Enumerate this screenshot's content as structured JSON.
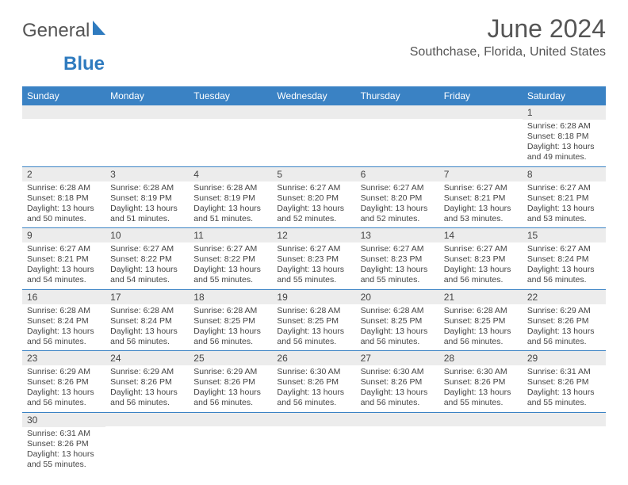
{
  "brand": {
    "name_part1": "General",
    "name_part2": "Blue"
  },
  "title": "June 2024",
  "location": "Southchase, Florida, United States",
  "colors": {
    "header_bg": "#3a82c4",
    "header_text": "#ffffff",
    "daynum_bg": "#ececec",
    "border": "#3a82c4",
    "brand_blue": "#2f7bbf",
    "text": "#444444"
  },
  "weekdays": [
    "Sunday",
    "Monday",
    "Tuesday",
    "Wednesday",
    "Thursday",
    "Friday",
    "Saturday"
  ],
  "layout": {
    "columns": 7,
    "first_weekday_index": 6,
    "days_in_month": 30,
    "font_size_header": 12,
    "font_size_body": 10.5,
    "font_size_title": 32,
    "font_size_location": 16
  },
  "days": {
    "1": {
      "sunrise": "6:28 AM",
      "sunset": "8:18 PM",
      "daylight": "13 hours and 49 minutes."
    },
    "2": {
      "sunrise": "6:28 AM",
      "sunset": "8:18 PM",
      "daylight": "13 hours and 50 minutes."
    },
    "3": {
      "sunrise": "6:28 AM",
      "sunset": "8:19 PM",
      "daylight": "13 hours and 51 minutes."
    },
    "4": {
      "sunrise": "6:28 AM",
      "sunset": "8:19 PM",
      "daylight": "13 hours and 51 minutes."
    },
    "5": {
      "sunrise": "6:27 AM",
      "sunset": "8:20 PM",
      "daylight": "13 hours and 52 minutes."
    },
    "6": {
      "sunrise": "6:27 AM",
      "sunset": "8:20 PM",
      "daylight": "13 hours and 52 minutes."
    },
    "7": {
      "sunrise": "6:27 AM",
      "sunset": "8:21 PM",
      "daylight": "13 hours and 53 minutes."
    },
    "8": {
      "sunrise": "6:27 AM",
      "sunset": "8:21 PM",
      "daylight": "13 hours and 53 minutes."
    },
    "9": {
      "sunrise": "6:27 AM",
      "sunset": "8:21 PM",
      "daylight": "13 hours and 54 minutes."
    },
    "10": {
      "sunrise": "6:27 AM",
      "sunset": "8:22 PM",
      "daylight": "13 hours and 54 minutes."
    },
    "11": {
      "sunrise": "6:27 AM",
      "sunset": "8:22 PM",
      "daylight": "13 hours and 55 minutes."
    },
    "12": {
      "sunrise": "6:27 AM",
      "sunset": "8:23 PM",
      "daylight": "13 hours and 55 minutes."
    },
    "13": {
      "sunrise": "6:27 AM",
      "sunset": "8:23 PM",
      "daylight": "13 hours and 55 minutes."
    },
    "14": {
      "sunrise": "6:27 AM",
      "sunset": "8:23 PM",
      "daylight": "13 hours and 56 minutes."
    },
    "15": {
      "sunrise": "6:27 AM",
      "sunset": "8:24 PM",
      "daylight": "13 hours and 56 minutes."
    },
    "16": {
      "sunrise": "6:28 AM",
      "sunset": "8:24 PM",
      "daylight": "13 hours and 56 minutes."
    },
    "17": {
      "sunrise": "6:28 AM",
      "sunset": "8:24 PM",
      "daylight": "13 hours and 56 minutes."
    },
    "18": {
      "sunrise": "6:28 AM",
      "sunset": "8:25 PM",
      "daylight": "13 hours and 56 minutes."
    },
    "19": {
      "sunrise": "6:28 AM",
      "sunset": "8:25 PM",
      "daylight": "13 hours and 56 minutes."
    },
    "20": {
      "sunrise": "6:28 AM",
      "sunset": "8:25 PM",
      "daylight": "13 hours and 56 minutes."
    },
    "21": {
      "sunrise": "6:28 AM",
      "sunset": "8:25 PM",
      "daylight": "13 hours and 56 minutes."
    },
    "22": {
      "sunrise": "6:29 AM",
      "sunset": "8:26 PM",
      "daylight": "13 hours and 56 minutes."
    },
    "23": {
      "sunrise": "6:29 AM",
      "sunset": "8:26 PM",
      "daylight": "13 hours and 56 minutes."
    },
    "24": {
      "sunrise": "6:29 AM",
      "sunset": "8:26 PM",
      "daylight": "13 hours and 56 minutes."
    },
    "25": {
      "sunrise": "6:29 AM",
      "sunset": "8:26 PM",
      "daylight": "13 hours and 56 minutes."
    },
    "26": {
      "sunrise": "6:30 AM",
      "sunset": "8:26 PM",
      "daylight": "13 hours and 56 minutes."
    },
    "27": {
      "sunrise": "6:30 AM",
      "sunset": "8:26 PM",
      "daylight": "13 hours and 56 minutes."
    },
    "28": {
      "sunrise": "6:30 AM",
      "sunset": "8:26 PM",
      "daylight": "13 hours and 55 minutes."
    },
    "29": {
      "sunrise": "6:31 AM",
      "sunset": "8:26 PM",
      "daylight": "13 hours and 55 minutes."
    },
    "30": {
      "sunrise": "6:31 AM",
      "sunset": "8:26 PM",
      "daylight": "13 hours and 55 minutes."
    }
  },
  "labels": {
    "sunrise_prefix": "Sunrise: ",
    "sunset_prefix": "Sunset: ",
    "daylight_prefix": "Daylight: "
  }
}
